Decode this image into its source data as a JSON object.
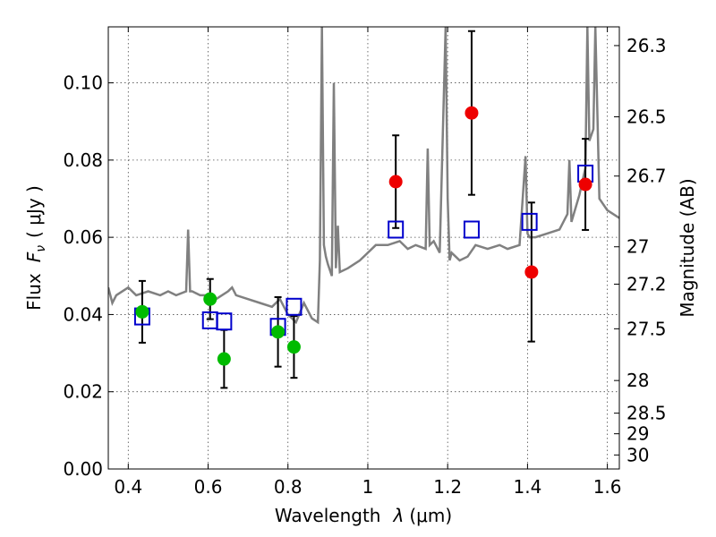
{
  "chart_data": {
    "type": "scatter",
    "xlabel_prefix": "Wavelength",
    "xlabel_symbol": "λ",
    "xlabel_unit": "(μm)",
    "ylabel_prefix": "Flux",
    "ylabel_symbol": "F",
    "ylabel_sub": "ν",
    "ylabel_unit": "( μJy )",
    "y2label": "Magnitude (AB)",
    "xlim": [
      0.35,
      1.63
    ],
    "ylim": [
      0,
      0.1145
    ],
    "x_ticks": [
      0.4,
      0.6,
      0.8,
      1.0,
      1.2,
      1.4,
      1.6
    ],
    "x_tick_labels": [
      "0.4",
      "0.6",
      "0.8",
      "1",
      "1.2",
      "1.4",
      "1.6"
    ],
    "y_ticks": [
      0.0,
      0.02,
      0.04,
      0.06,
      0.08,
      0.1
    ],
    "y_tick_labels": [
      "0.00",
      "0.02",
      "0.04",
      "0.06",
      "0.08",
      "0.10"
    ],
    "mag_ticks": [
      26.3,
      26.5,
      26.7,
      27,
      27.2,
      27.5,
      28,
      28.5,
      29,
      30
    ],
    "mag_tick_labels": [
      "26.3",
      "26.5",
      "26.7",
      "27",
      "27.2",
      "27.5",
      "28",
      "28.5",
      "29",
      "30"
    ],
    "grid": true,
    "colors": {
      "template": "#808080",
      "green": "#00bb00",
      "red": "#ee0000",
      "model": "#0000cc"
    },
    "green_points": {
      "x": [
        0.435,
        0.605,
        0.64,
        0.775,
        0.815
      ],
      "y": [
        0.0407,
        0.044,
        0.0285,
        0.0355,
        0.0316
      ],
      "yerr": [
        0.008,
        0.0052,
        0.0075,
        0.009,
        0.008
      ]
    },
    "red_points": {
      "x": [
        1.07,
        1.26,
        1.41,
        1.545
      ],
      "y": [
        0.0744,
        0.0922,
        0.051,
        0.0737
      ],
      "yerr": [
        0.012,
        0.0212,
        0.018,
        0.0118
      ]
    },
    "model_squares": {
      "x": [
        0.435,
        0.605,
        0.64,
        0.775,
        0.815,
        1.07,
        1.26,
        1.405,
        1.545
      ],
      "y": [
        0.0395,
        0.0385,
        0.0382,
        0.0368,
        0.042,
        0.062,
        0.062,
        0.064,
        0.0765
      ]
    },
    "template_spectrum": {
      "x": [
        0.35,
        0.36,
        0.37,
        0.4,
        0.42,
        0.45,
        0.48,
        0.5,
        0.52,
        0.545,
        0.55,
        0.555,
        0.56,
        0.58,
        0.6,
        0.62,
        0.65,
        0.66,
        0.67,
        0.7,
        0.73,
        0.76,
        0.78,
        0.8,
        0.82,
        0.84,
        0.86,
        0.875,
        0.88,
        0.885,
        0.89,
        0.895,
        0.9,
        0.91,
        0.915,
        0.92,
        0.925,
        0.93,
        0.95,
        0.98,
        1.0,
        1.02,
        1.05,
        1.08,
        1.1,
        1.12,
        1.145,
        1.15,
        1.155,
        1.165,
        1.18,
        1.195,
        1.2,
        1.205,
        1.21,
        1.23,
        1.25,
        1.27,
        1.3,
        1.33,
        1.35,
        1.38,
        1.395,
        1.4,
        1.405,
        1.42,
        1.45,
        1.48,
        1.5,
        1.505,
        1.51,
        1.53,
        1.545,
        1.55,
        1.555,
        1.565,
        1.57,
        1.58,
        1.6,
        1.63
      ],
      "y": [
        0.047,
        0.043,
        0.045,
        0.047,
        0.045,
        0.046,
        0.045,
        0.046,
        0.045,
        0.046,
        0.062,
        0.046,
        0.046,
        0.045,
        0.045,
        0.044,
        0.046,
        0.047,
        0.045,
        0.044,
        0.043,
        0.042,
        0.044,
        0.04,
        0.038,
        0.043,
        0.039,
        0.038,
        0.054,
        0.1145,
        0.058,
        0.055,
        0.053,
        0.05,
        0.1,
        0.052,
        0.063,
        0.051,
        0.052,
        0.054,
        0.056,
        0.058,
        0.058,
        0.059,
        0.057,
        0.058,
        0.057,
        0.083,
        0.058,
        0.059,
        0.056,
        0.1145,
        0.07,
        0.054,
        0.056,
        0.054,
        0.055,
        0.058,
        0.057,
        0.058,
        0.057,
        0.058,
        0.081,
        0.061,
        0.06,
        0.06,
        0.061,
        0.062,
        0.066,
        0.08,
        0.064,
        0.071,
        0.078,
        0.1145,
        0.085,
        0.088,
        0.1145,
        0.07,
        0.067,
        0.065
      ]
    }
  }
}
